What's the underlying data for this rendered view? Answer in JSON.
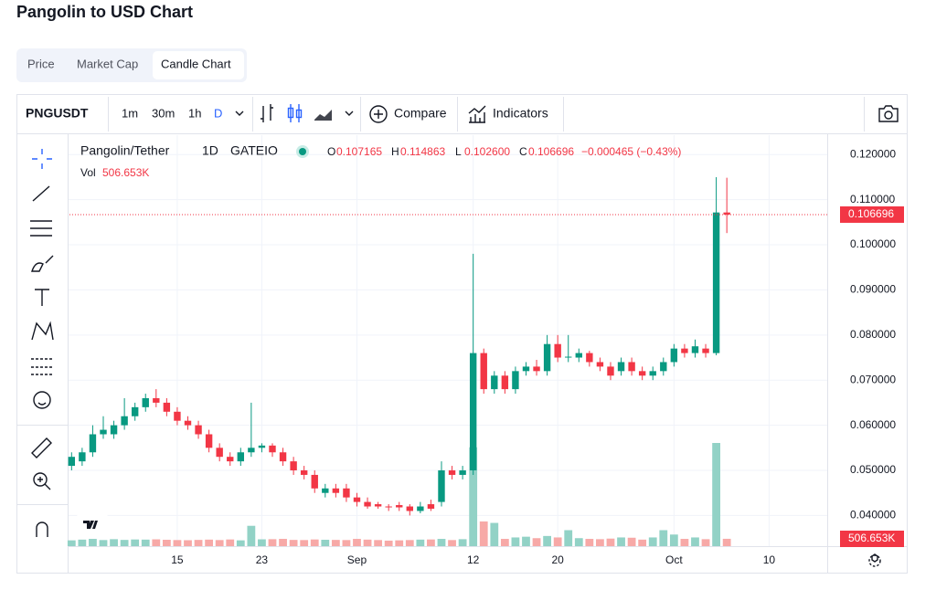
{
  "header": {
    "title": "Pangolin to USD Chart"
  },
  "tabs": [
    "Price",
    "Market Cap",
    "Candle Chart"
  ],
  "toolbar": {
    "symbol": "PNGUSDT",
    "intervals": [
      "1m",
      "30m",
      "1h",
      "D"
    ],
    "compare": "Compare",
    "indicators": "Indicators"
  },
  "chart_data": {
    "type": "candlestick",
    "symbol_title": "Pangolin/Tether",
    "interval": "1D",
    "exchange": "GATEIO",
    "legend": [
      {
        "key": "O",
        "value": "0.107165"
      },
      {
        "key": "H",
        "value": "0.114863"
      },
      {
        "key": "L",
        "value": "0.102600"
      },
      {
        "key": "C",
        "value": "0.106696"
      }
    ],
    "change": "−0.000465 (−0.43%)",
    "volume_title": "Vol",
    "volume_label": "506.653K",
    "x": [
      0,
      1,
      2,
      3,
      4,
      5,
      6,
      7,
      8,
      9,
      10,
      11,
      12,
      13,
      14,
      15,
      16,
      17,
      18,
      19,
      20,
      21,
      22,
      23,
      24,
      25,
      26,
      27,
      28,
      29,
      30,
      31,
      32,
      33,
      34,
      35,
      36,
      37,
      38,
      39,
      40,
      41,
      42,
      43,
      44,
      45,
      46,
      47,
      48,
      49,
      50,
      51,
      52,
      53,
      54,
      55,
      56,
      57,
      58,
      59,
      60,
      61,
      62
    ],
    "open": [
      0.051,
      0.052,
      0.054,
      0.058,
      0.058,
      0.06,
      0.062,
      0.064,
      0.066,
      0.065,
      0.063,
      0.061,
      0.06,
      0.058,
      0.055,
      0.053,
      0.052,
      0.054,
      0.055,
      0.0555,
      0.054,
      0.052,
      0.05,
      0.049,
      0.045,
      0.046,
      0.046,
      0.044,
      0.043,
      0.0425,
      0.042,
      0.0423,
      0.042,
      0.041,
      0.0425,
      0.043,
      0.05,
      0.049,
      0.05,
      0.076,
      0.068,
      0.071,
      0.068,
      0.072,
      0.073,
      0.072,
      0.078,
      0.075,
      0.075,
      0.076,
      0.074,
      0.073,
      0.072,
      0.074,
      0.072,
      0.071,
      0.072,
      0.074,
      0.077,
      0.076,
      0.077,
      0.076,
      0.107165
    ],
    "high": [
      0.054,
      0.055,
      0.06,
      0.062,
      0.061,
      0.066,
      0.065,
      0.067,
      0.068,
      0.066,
      0.064,
      0.062,
      0.061,
      0.059,
      0.056,
      0.054,
      0.055,
      0.065,
      0.056,
      0.056,
      0.055,
      0.053,
      0.051,
      0.05,
      0.047,
      0.047,
      0.047,
      0.045,
      0.044,
      0.043,
      0.0425,
      0.043,
      0.0425,
      0.043,
      0.0435,
      0.052,
      0.051,
      0.051,
      0.098,
      0.077,
      0.072,
      0.072,
      0.073,
      0.074,
      0.0745,
      0.08,
      0.08,
      0.08,
      0.077,
      0.0765,
      0.075,
      0.074,
      0.075,
      0.075,
      0.073,
      0.073,
      0.075,
      0.078,
      0.078,
      0.079,
      0.078,
      0.115,
      0.114863
    ],
    "low": [
      0.05,
      0.051,
      0.053,
      0.057,
      0.057,
      0.059,
      0.061,
      0.063,
      0.064,
      0.062,
      0.06,
      0.059,
      0.057,
      0.054,
      0.052,
      0.051,
      0.051,
      0.053,
      0.054,
      0.053,
      0.051,
      0.049,
      0.048,
      0.045,
      0.044,
      0.044,
      0.043,
      0.042,
      0.0415,
      0.0415,
      0.041,
      0.041,
      0.04,
      0.0405,
      0.041,
      0.042,
      0.048,
      0.048,
      0.049,
      0.067,
      0.067,
      0.067,
      0.067,
      0.071,
      0.071,
      0.071,
      0.074,
      0.074,
      0.074,
      0.073,
      0.072,
      0.07,
      0.071,
      0.071,
      0.07,
      0.07,
      0.071,
      0.073,
      0.075,
      0.075,
      0.075,
      0.0755,
      0.1026
    ],
    "close": [
      0.053,
      0.054,
      0.058,
      0.059,
      0.06,
      0.062,
      0.064,
      0.066,
      0.065,
      0.063,
      0.061,
      0.06,
      0.058,
      0.055,
      0.053,
      0.052,
      0.054,
      0.055,
      0.0555,
      0.054,
      0.052,
      0.05,
      0.049,
      0.046,
      0.046,
      0.045,
      0.044,
      0.043,
      0.042,
      0.042,
      0.0418,
      0.0418,
      0.041,
      0.042,
      0.0415,
      0.05,
      0.049,
      0.05,
      0.076,
      0.068,
      0.071,
      0.068,
      0.072,
      0.073,
      0.072,
      0.078,
      0.075,
      0.0752,
      0.076,
      0.074,
      0.073,
      0.071,
      0.074,
      0.072,
      0.071,
      0.072,
      0.074,
      0.077,
      0.076,
      0.0775,
      0.076,
      0.107165,
      0.106696
    ],
    "volume": [
      400000,
      450000,
      500000,
      420000,
      480000,
      430000,
      460000,
      450000,
      470000,
      440000,
      420000,
      410000,
      430000,
      450000,
      420000,
      460000,
      400000,
      1400000,
      470000,
      480000,
      500000,
      430000,
      420000,
      460000,
      440000,
      430000,
      420000,
      500000,
      450000,
      420000,
      380000,
      400000,
      420000,
      450000,
      460000,
      500000,
      420000,
      480000,
      6800000,
      1700000,
      1600000,
      500000,
      600000,
      650000,
      550000,
      700000,
      600000,
      1100000,
      550000,
      500000,
      480000,
      520000,
      600000,
      580000,
      450000,
      600000,
      1100000,
      800000,
      500000,
      600000,
      480000,
      7100000,
      506653
    ],
    "xlim": [
      -0.2,
      71.5
    ],
    "xticks": [
      {
        "value": 10,
        "label": "15"
      },
      {
        "value": 18,
        "label": "23"
      },
      {
        "value": 27,
        "label": "Sep"
      },
      {
        "value": 38,
        "label": "12"
      },
      {
        "value": 46,
        "label": "20"
      },
      {
        "value": 57,
        "label": "Oct"
      },
      {
        "value": 66,
        "label": "10"
      }
    ],
    "ylim": [
      0.0332,
      0.1243
    ],
    "yticks": [
      {
        "value": 0.04,
        "label": "0.040000"
      },
      {
        "value": 0.05,
        "label": "0.050000"
      },
      {
        "value": 0.06,
        "label": "0.060000"
      },
      {
        "value": 0.07,
        "label": "0.070000"
      },
      {
        "value": 0.08,
        "label": "0.080000"
      },
      {
        "value": 0.09,
        "label": "0.090000"
      },
      {
        "value": 0.1,
        "label": "0.100000"
      },
      {
        "value": 0.11,
        "label": "0.110000"
      },
      {
        "value": 0.12,
        "label": "0.120000"
      }
    ],
    "grid": true,
    "up_color": "#089981",
    "down_color": "#f23645",
    "volume_up_color": "#92d2c6",
    "volume_down_color": "#f7a9a7"
  }
}
